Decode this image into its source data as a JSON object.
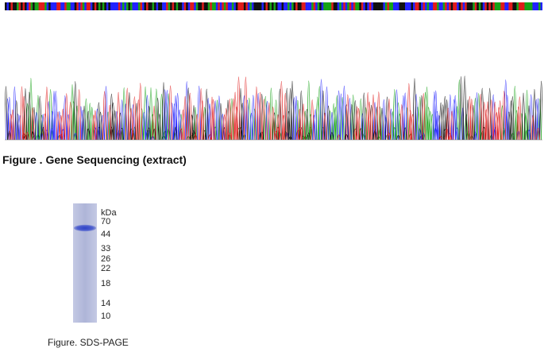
{
  "sequencing": {
    "caption": "Figure . Gene Sequencing (extract)",
    "base_colors": {
      "A": "#17a317",
      "C": "#2222ff",
      "G": "#111111",
      "T": "#e01b1b"
    }
  },
  "sds_page": {
    "caption": "Figure. SDS-PAGE",
    "unit_label": "kDa",
    "marker_labels": [
      "70",
      "44",
      "33",
      "26",
      "22",
      "18",
      "14",
      "10"
    ],
    "lane_color": "#b4bad9",
    "band_color": "#3c4fcb"
  }
}
